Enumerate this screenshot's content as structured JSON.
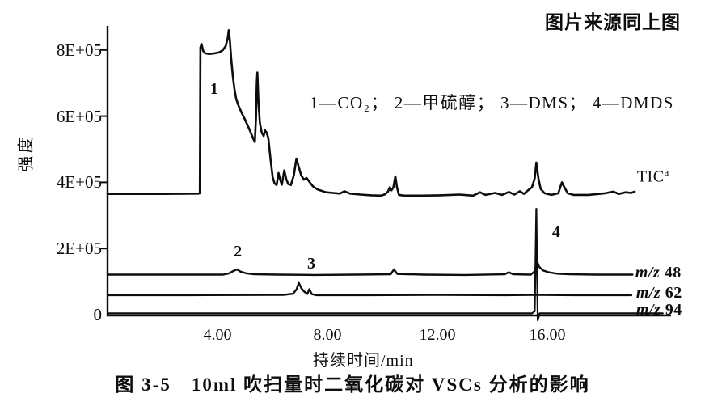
{
  "page": {
    "source_note": "图片来源同上图",
    "caption": "图 3-5　10ml 吹扫量时二氧化碳对 VSCs 分析的影响"
  },
  "chart_data": {
    "type": "line",
    "title": "图 3-5 10ml 吹扫量时二氧化碳对 VSCs 分析的影响",
    "xlabel": "持续时间/min",
    "ylabel": "强度",
    "legend_text": "1—CO₂； 2—甲硫醇； 3—DMS； 4—DMDS",
    "grid": false,
    "intensity_scale": "1E+05",
    "xlim": [
      0,
      20.5
    ],
    "ylim": [
      0,
      8.8
    ],
    "x_ticks": [
      {
        "value": 4,
        "label": "4.00"
      },
      {
        "value": 8,
        "label": "8.00"
      },
      {
        "value": 12,
        "label": "12.00"
      },
      {
        "value": 16,
        "label": "16.00"
      }
    ],
    "y_ticks": [
      {
        "value": 0,
        "label": "0"
      },
      {
        "value": 2,
        "label": "2E+05"
      },
      {
        "value": 4,
        "label": "4E+05"
      },
      {
        "value": 6,
        "label": "6E+05"
      },
      {
        "value": 8,
        "label": "8E+05"
      }
    ],
    "peak_annotations": [
      {
        "label": "1",
        "t": 3.88,
        "i": 7.07
      },
      {
        "label": "2",
        "t": 4.74,
        "i": 2.15
      },
      {
        "label": "3",
        "t": 7.41,
        "i": 1.78
      },
      {
        "label": "4",
        "t": 16.32,
        "i": 2.74
      }
    ],
    "series": [
      {
        "name": "TIC",
        "label": {
          "text": "TIC",
          "sup": "a"
        },
        "label_pos": {
          "t": 19.26,
          "i": 4.57
        },
        "points": [
          [
            0,
            3.65
          ],
          [
            2.0,
            3.65
          ],
          [
            3.3,
            3.66
          ],
          [
            3.36,
            3.67
          ],
          [
            3.38,
            8.08
          ],
          [
            3.42,
            8.18
          ],
          [
            3.48,
            7.97
          ],
          [
            3.55,
            7.9
          ],
          [
            3.7,
            7.88
          ],
          [
            3.9,
            7.9
          ],
          [
            4.07,
            7.93
          ],
          [
            4.2,
            8.0
          ],
          [
            4.3,
            8.12
          ],
          [
            4.37,
            8.35
          ],
          [
            4.41,
            8.6
          ],
          [
            4.45,
            8.3
          ],
          [
            4.5,
            7.72
          ],
          [
            4.56,
            7.2
          ],
          [
            4.62,
            6.8
          ],
          [
            4.68,
            6.52
          ],
          [
            4.76,
            6.33
          ],
          [
            4.88,
            6.1
          ],
          [
            5.0,
            5.9
          ],
          [
            5.15,
            5.62
          ],
          [
            5.3,
            5.32
          ],
          [
            5.36,
            5.22
          ],
          [
            5.4,
            5.95
          ],
          [
            5.43,
            7.0
          ],
          [
            5.45,
            7.32
          ],
          [
            5.49,
            6.42
          ],
          [
            5.54,
            5.8
          ],
          [
            5.61,
            5.5
          ],
          [
            5.68,
            5.4
          ],
          [
            5.73,
            5.57
          ],
          [
            5.79,
            5.5
          ],
          [
            5.85,
            5.33
          ],
          [
            5.93,
            4.7
          ],
          [
            6.01,
            4.15
          ],
          [
            6.08,
            3.96
          ],
          [
            6.15,
            3.92
          ],
          [
            6.22,
            4.28
          ],
          [
            6.28,
            4.08
          ],
          [
            6.34,
            3.93
          ],
          [
            6.43,
            4.36
          ],
          [
            6.5,
            4.1
          ],
          [
            6.57,
            3.95
          ],
          [
            6.67,
            3.92
          ],
          [
            6.78,
            4.22
          ],
          [
            6.87,
            4.72
          ],
          [
            6.95,
            4.48
          ],
          [
            7.04,
            4.22
          ],
          [
            7.14,
            4.08
          ],
          [
            7.24,
            4.13
          ],
          [
            7.34,
            4.02
          ],
          [
            7.47,
            3.88
          ],
          [
            7.65,
            3.78
          ],
          [
            7.95,
            3.7
          ],
          [
            8.2,
            3.68
          ],
          [
            8.45,
            3.66
          ],
          [
            8.62,
            3.73
          ],
          [
            8.82,
            3.66
          ],
          [
            9.2,
            3.63
          ],
          [
            9.6,
            3.61
          ],
          [
            9.95,
            3.6
          ],
          [
            10.1,
            3.64
          ],
          [
            10.2,
            3.72
          ],
          [
            10.27,
            3.85
          ],
          [
            10.33,
            3.76
          ],
          [
            10.4,
            3.85
          ],
          [
            10.47,
            4.18
          ],
          [
            10.53,
            3.85
          ],
          [
            10.6,
            3.62
          ],
          [
            10.8,
            3.6
          ],
          [
            11.4,
            3.6
          ],
          [
            12.1,
            3.61
          ],
          [
            12.8,
            3.63
          ],
          [
            13.3,
            3.6
          ],
          [
            13.55,
            3.7
          ],
          [
            13.75,
            3.62
          ],
          [
            14.1,
            3.68
          ],
          [
            14.35,
            3.62
          ],
          [
            14.6,
            3.71
          ],
          [
            14.8,
            3.63
          ],
          [
            15.0,
            3.73
          ],
          [
            15.15,
            3.65
          ],
          [
            15.3,
            3.76
          ],
          [
            15.44,
            3.85
          ],
          [
            15.54,
            4.12
          ],
          [
            15.6,
            4.6
          ],
          [
            15.68,
            4.1
          ],
          [
            15.76,
            3.8
          ],
          [
            15.9,
            3.67
          ],
          [
            16.15,
            3.62
          ],
          [
            16.4,
            3.67
          ],
          [
            16.53,
            4.0
          ],
          [
            16.62,
            3.85
          ],
          [
            16.74,
            3.67
          ],
          [
            16.95,
            3.62
          ],
          [
            17.5,
            3.62
          ],
          [
            18.1,
            3.67
          ],
          [
            18.4,
            3.72
          ],
          [
            18.6,
            3.65
          ],
          [
            18.85,
            3.7
          ],
          [
            19.05,
            3.68
          ],
          [
            19.18,
            3.72
          ]
        ]
      },
      {
        "name": "m/z 48",
        "label": {
          "italic": "m/z",
          "text": " 48"
        },
        "label_pos": {
          "t": 19.2,
          "i": 1.52
        },
        "points": [
          [
            0,
            1.21
          ],
          [
            2.5,
            1.21
          ],
          [
            4.2,
            1.21
          ],
          [
            4.42,
            1.25
          ],
          [
            4.6,
            1.33
          ],
          [
            4.71,
            1.37
          ],
          [
            4.84,
            1.3
          ],
          [
            5.05,
            1.25
          ],
          [
            5.35,
            1.22
          ],
          [
            6.2,
            1.21
          ],
          [
            7.5,
            1.2
          ],
          [
            9.0,
            1.21
          ],
          [
            10.3,
            1.22
          ],
          [
            10.42,
            1.37
          ],
          [
            10.54,
            1.23
          ],
          [
            11.5,
            1.21
          ],
          [
            13.0,
            1.2
          ],
          [
            14.45,
            1.22
          ],
          [
            14.6,
            1.28
          ],
          [
            14.75,
            1.22
          ],
          [
            15.4,
            1.21
          ],
          [
            15.55,
            1.32
          ],
          [
            15.62,
            1.62
          ],
          [
            15.7,
            1.45
          ],
          [
            15.84,
            1.34
          ],
          [
            16.05,
            1.28
          ],
          [
            16.35,
            1.24
          ],
          [
            16.8,
            1.22
          ],
          [
            17.8,
            1.21
          ],
          [
            19.1,
            1.21
          ]
        ]
      },
      {
        "name": "m/z 62",
        "label": {
          "italic": "m/z",
          "text": " 62"
        },
        "label_pos": {
          "t": 19.23,
          "i": 0.9
        },
        "points": [
          [
            0,
            0.59
          ],
          [
            3.0,
            0.59
          ],
          [
            6.4,
            0.6
          ],
          [
            6.75,
            0.63
          ],
          [
            6.88,
            0.77
          ],
          [
            6.96,
            0.96
          ],
          [
            7.05,
            0.8
          ],
          [
            7.15,
            0.7
          ],
          [
            7.27,
            0.63
          ],
          [
            7.34,
            0.77
          ],
          [
            7.43,
            0.62
          ],
          [
            7.6,
            0.59
          ],
          [
            9.5,
            0.59
          ],
          [
            12.0,
            0.6
          ],
          [
            14.5,
            0.59
          ],
          [
            15.58,
            0.6
          ],
          [
            17.0,
            0.59
          ],
          [
            19.06,
            0.59
          ]
        ]
      },
      {
        "name": "m/z 94",
        "label": {
          "italic": "m/z",
          "text": " 94"
        },
        "label_pos": {
          "t": 19.23,
          "i": 0.39
        },
        "points": [
          [
            0,
            0.04
          ],
          [
            6.0,
            0.04
          ],
          [
            12.0,
            0.04
          ],
          [
            15.44,
            0.04
          ],
          [
            15.54,
            0.1
          ],
          [
            15.6,
            3.2
          ],
          [
            15.65,
            -0.17
          ],
          [
            15.72,
            0.04
          ],
          [
            17.0,
            0.04
          ],
          [
            18.5,
            0.04
          ],
          [
            20.2,
            0.04
          ]
        ]
      }
    ]
  }
}
